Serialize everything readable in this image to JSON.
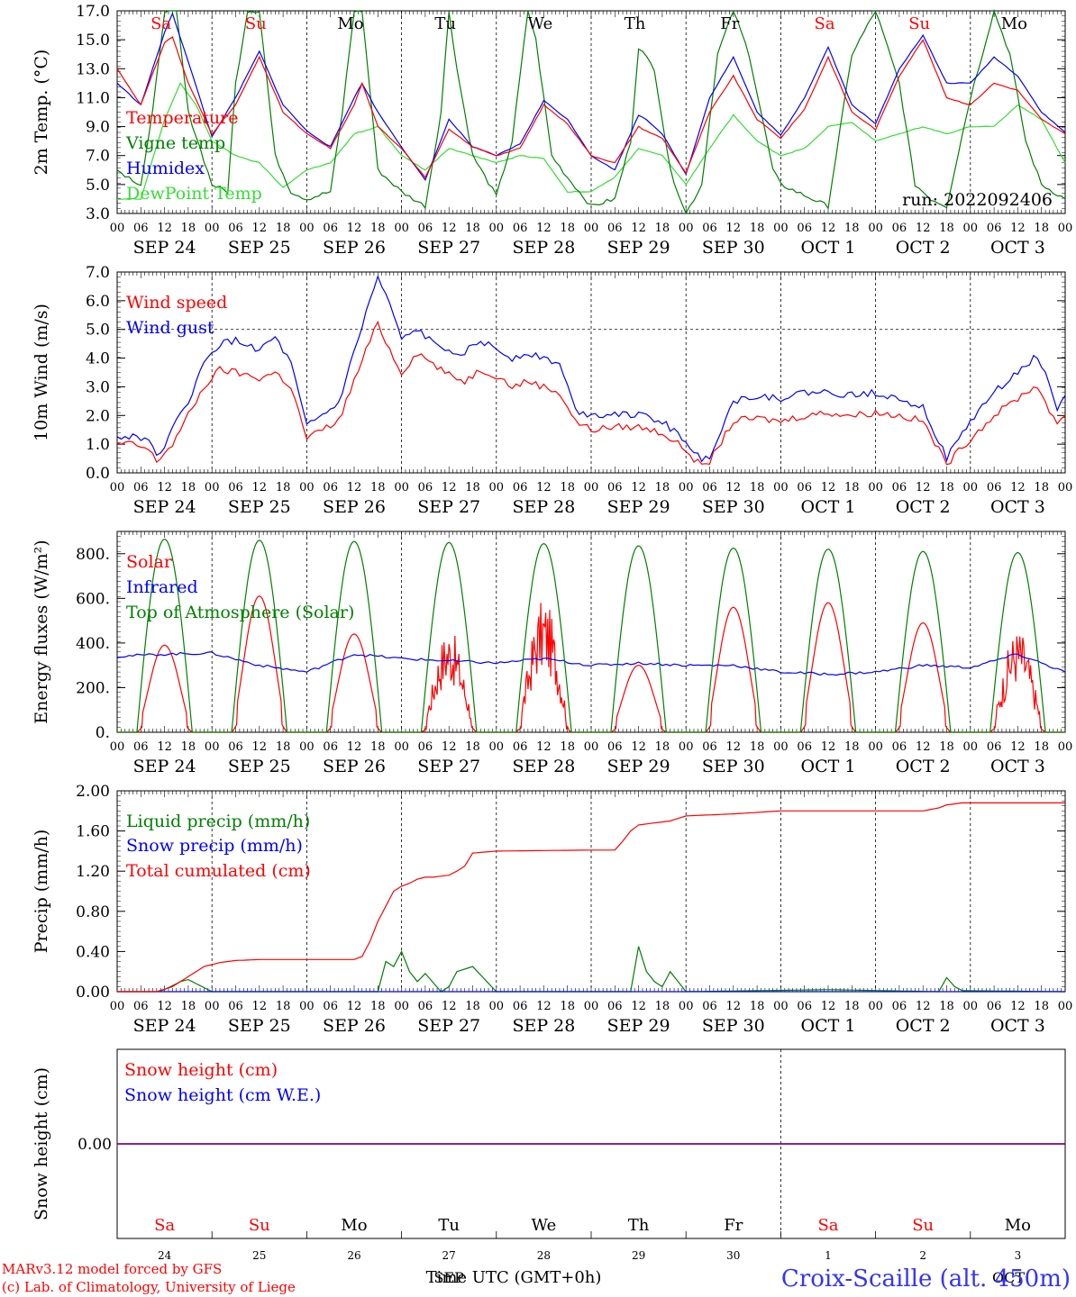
{
  "meta": {
    "run_label": "run: 2022092406",
    "credit_line1": "MARv3.12 model forced by GFS",
    "credit_line2": "(c) Lab. of Climatology, University of Liege",
    "station": "Croix-Scaille (alt. 450m)",
    "time_axis_title": "Time UTC (GMT+0h)",
    "bottom_month_sep": "SEP",
    "bottom_month_oct": "OCT"
  },
  "days": [
    {
      "short": "Sa",
      "date": "SEP 24",
      "num": "24",
      "weekend": true
    },
    {
      "short": "Su",
      "date": "SEP 25",
      "num": "25",
      "weekend": true
    },
    {
      "short": "Mo",
      "date": "SEP 26",
      "num": "26",
      "weekend": false
    },
    {
      "short": "Tu",
      "date": "SEP 27",
      "num": "27",
      "weekend": false
    },
    {
      "short": "We",
      "date": "SEP 28",
      "num": "28",
      "weekend": false
    },
    {
      "short": "Th",
      "date": "SEP 29",
      "num": "29",
      "weekend": false
    },
    {
      "short": "Fr",
      "date": "SEP 30",
      "num": "30",
      "weekend": false
    },
    {
      "short": "Sa",
      "date": "OCT  1",
      "num": "1",
      "weekend": true
    },
    {
      "short": "Su",
      "date": "OCT  2",
      "num": "2",
      "weekend": true
    },
    {
      "short": "Mo",
      "date": "OCT  3",
      "num": "3",
      "weekend": false
    }
  ],
  "hour_ticks": [
    "00",
    "06",
    "12",
    "18"
  ],
  "colors": {
    "red": "#ff0000",
    "green": "#008000",
    "blue": "#0000ff",
    "lightgreen": "#33dd33",
    "purple": "#800080",
    "station": "#3333ff"
  },
  "chart_data": [
    {
      "type": "line",
      "ylabel": "2m Temp. (°C)",
      "ylim": [
        3.0,
        17.0
      ],
      "yticks": [
        "3.0",
        "5.0",
        "7.0",
        "9.0",
        "11.0",
        "13.0",
        "15.0",
        "17.0"
      ],
      "x": "hours since SEP 24 00 UTC (0-240)",
      "series": [
        {
          "name": "Temperature",
          "color": "#ff0000",
          "x": [
            0,
            6,
            12,
            14,
            18,
            24,
            30,
            36,
            42,
            48,
            54,
            60,
            62,
            66,
            72,
            78,
            84,
            90,
            96,
            102,
            108,
            114,
            120,
            126,
            132,
            134,
            138,
            144,
            150,
            156,
            162,
            168,
            174,
            180,
            186,
            192,
            198,
            204,
            210,
            216,
            222,
            228,
            234,
            240
          ],
          "values": [
            13.0,
            10.5,
            14.8,
            15.2,
            12.0,
            8.5,
            10.5,
            13.8,
            10.0,
            8.5,
            7.5,
            10.5,
            12.0,
            9.0,
            7.5,
            5.5,
            8.8,
            7.6,
            7.0,
            7.5,
            10.5,
            9.2,
            7.0,
            6.5,
            9.0,
            8.7,
            8.2,
            5.8,
            10.0,
            12.5,
            9.5,
            8.2,
            10.2,
            13.8,
            10.0,
            8.8,
            12.5,
            15.0,
            11.0,
            10.5,
            12.0,
            11.5,
            9.5,
            8.5
          ]
        },
        {
          "name": "Vigne temp",
          "color": "#008000",
          "x": [
            0,
            6,
            9,
            12,
            15,
            18,
            24,
            28,
            30,
            33,
            36,
            40,
            44,
            48,
            54,
            57,
            60,
            62,
            66,
            72,
            78,
            82,
            84,
            86,
            90,
            96,
            100,
            104,
            106,
            108,
            110,
            114,
            120,
            126,
            130,
            132,
            136,
            140,
            144,
            148,
            152,
            156,
            160,
            166,
            168,
            172,
            176,
            180,
            186,
            192,
            198,
            202,
            206,
            210,
            216,
            222,
            226,
            230,
            234,
            240
          ],
          "values": [
            6.0,
            5.0,
            10.0,
            17.0,
            17.0,
            10.0,
            5.0,
            4.5,
            12.0,
            17.0,
            17.0,
            7.0,
            4.5,
            4.0,
            4.5,
            10.0,
            17.0,
            17.0,
            6.0,
            4.5,
            3.5,
            10.0,
            17.0,
            13.0,
            7.0,
            4.2,
            8.0,
            17.0,
            15.0,
            11.0,
            7.0,
            5.5,
            3.5,
            4.0,
            8.0,
            14.5,
            13.0,
            6.0,
            3.0,
            5.0,
            14.0,
            17.0,
            14.0,
            6.0,
            5.0,
            4.5,
            4.0,
            3.5,
            14.0,
            17.0,
            12.0,
            5.0,
            4.0,
            3.5,
            11.0,
            17.0,
            14.0,
            8.0,
            5.0,
            4.0
          ]
        },
        {
          "name": "Humidex",
          "color": "#0000ff",
          "x": [
            0,
            6,
            12,
            14,
            18,
            24,
            30,
            36,
            42,
            48,
            54,
            60,
            62,
            66,
            72,
            78,
            84,
            90,
            96,
            102,
            108,
            114,
            120,
            126,
            132,
            134,
            138,
            144,
            150,
            156,
            162,
            168,
            174,
            180,
            186,
            192,
            198,
            204,
            210,
            216,
            222,
            228,
            234,
            240
          ],
          "values": [
            12.0,
            10.5,
            15.5,
            16.8,
            13.5,
            8.3,
            11.0,
            14.2,
            10.5,
            8.7,
            7.6,
            11.0,
            12.0,
            10.0,
            7.6,
            5.3,
            9.5,
            7.6,
            7.0,
            7.8,
            10.8,
            9.5,
            7.0,
            6.0,
            9.8,
            9.5,
            8.5,
            5.7,
            11.0,
            13.8,
            10.0,
            8.4,
            11.0,
            14.5,
            10.5,
            9.2,
            13.0,
            15.3,
            12.0,
            12.0,
            13.8,
            12.5,
            10.0,
            8.6
          ]
        },
        {
          "name": "DewPoint Temp",
          "color": "#33dd33",
          "x": [
            0,
            6,
            12,
            16,
            20,
            24,
            30,
            36,
            42,
            48,
            54,
            60,
            66,
            72,
            78,
            84,
            90,
            96,
            102,
            108,
            114,
            120,
            126,
            132,
            138,
            144,
            150,
            156,
            162,
            168,
            174,
            180,
            186,
            192,
            198,
            204,
            210,
            216,
            222,
            228,
            234,
            240
          ],
          "values": [
            4.0,
            4.0,
            9.5,
            12.0,
            10.5,
            8.0,
            7.0,
            6.5,
            4.8,
            6.0,
            6.5,
            8.5,
            9.0,
            7.0,
            6.0,
            7.5,
            7.0,
            6.5,
            7.0,
            6.8,
            4.5,
            4.5,
            5.5,
            7.5,
            7.0,
            5.0,
            7.5,
            9.8,
            8.0,
            7.0,
            7.5,
            9.0,
            9.3,
            8.0,
            8.5,
            9.0,
            8.5,
            9.0,
            9.0,
            10.5,
            9.5,
            6.5
          ]
        }
      ]
    },
    {
      "type": "line",
      "ylabel": "10m Wind (m/s)",
      "ylim": [
        0.0,
        7.0
      ],
      "yticks": [
        "0.0",
        "1.0",
        "2.0",
        "3.0",
        "4.0",
        "5.0",
        "6.0",
        "7.0"
      ],
      "dashed_y": 5.0,
      "series": [
        {
          "name": "Wind speed",
          "color": "#ff0000",
          "x": [
            0,
            4,
            8,
            10,
            14,
            18,
            22,
            26,
            30,
            36,
            40,
            44,
            48,
            52,
            56,
            60,
            64,
            66,
            70,
            72,
            76,
            80,
            84,
            88,
            92,
            96,
            100,
            104,
            108,
            112,
            116,
            120,
            126,
            132,
            138,
            144,
            148,
            150,
            156,
            162,
            168,
            174,
            180,
            186,
            192,
            198,
            204,
            210,
            216,
            222,
            228,
            232,
            234,
            238,
            240
          ],
          "values": [
            1.0,
            1.0,
            0.8,
            0.4,
            1.0,
            2.0,
            3.0,
            3.6,
            3.5,
            3.3,
            3.5,
            3.0,
            1.2,
            1.5,
            1.8,
            3.2,
            4.6,
            5.2,
            4.0,
            3.5,
            4.2,
            3.8,
            3.4,
            3.2,
            3.6,
            3.4,
            3.0,
            3.2,
            3.0,
            2.8,
            1.8,
            1.5,
            1.6,
            1.6,
            1.4,
            0.8,
            0.2,
            0.4,
            1.8,
            1.9,
            1.8,
            2.0,
            2.1,
            2.0,
            2.1,
            2.0,
            1.8,
            0.3,
            1.2,
            2.0,
            2.6,
            3.0,
            2.8,
            1.6,
            2.0
          ]
        },
        {
          "name": "Wind gust",
          "color": "#0000ff",
          "x": [
            0,
            4,
            8,
            10,
            14,
            18,
            22,
            26,
            30,
            36,
            40,
            44,
            48,
            52,
            56,
            60,
            64,
            66,
            70,
            72,
            76,
            80,
            84,
            88,
            92,
            96,
            100,
            104,
            108,
            112,
            116,
            120,
            126,
            132,
            138,
            144,
            148,
            150,
            156,
            162,
            168,
            174,
            180,
            186,
            192,
            198,
            204,
            210,
            216,
            222,
            228,
            232,
            234,
            238,
            240
          ],
          "values": [
            1.2,
            1.3,
            1.2,
            0.5,
            1.5,
            2.5,
            3.8,
            4.5,
            4.6,
            4.3,
            4.7,
            3.8,
            1.6,
            2.0,
            2.4,
            4.2,
            6.0,
            6.8,
            5.5,
            4.6,
            5.0,
            4.5,
            4.3,
            4.2,
            4.6,
            4.3,
            4.0,
            4.2,
            4.0,
            3.8,
            2.2,
            2.0,
            2.1,
            2.0,
            1.8,
            1.1,
            0.4,
            0.6,
            2.5,
            2.7,
            2.6,
            2.8,
            2.8,
            2.7,
            2.8,
            2.6,
            2.3,
            0.5,
            1.8,
            2.8,
            3.5,
            4.0,
            3.8,
            2.2,
            2.7
          ]
        }
      ]
    },
    {
      "type": "line",
      "ylabel": "Energy fluxes (W/m²)",
      "ylim": [
        0,
        900
      ],
      "yticks": [
        "0.",
        "200.",
        "400.",
        "600.",
        "800."
      ],
      "series": [
        {
          "name": "Solar",
          "color": "#ff0000",
          "peaks": [
            390,
            610,
            440,
            470,
            600,
            300,
            560,
            580,
            490,
            470
          ]
        },
        {
          "name": "Infrared",
          "color": "#0000ff",
          "x": [
            0,
            12,
            24,
            36,
            48,
            60,
            72,
            84,
            96,
            108,
            120,
            132,
            144,
            156,
            168,
            180,
            192,
            204,
            216,
            228,
            240
          ],
          "values": [
            340,
            350,
            355,
            300,
            270,
            350,
            330,
            320,
            310,
            330,
            300,
            310,
            300,
            300,
            270,
            260,
            270,
            300,
            290,
            350,
            270
          ]
        },
        {
          "name": "Top of Atmosphere (Solar)",
          "color": "#008000",
          "peaks": [
            865,
            860,
            855,
            850,
            845,
            835,
            825,
            820,
            810,
            805
          ]
        }
      ]
    },
    {
      "type": "line",
      "ylabel": "Precip (mm/h)",
      "ylim": [
        0.0,
        2.0
      ],
      "yticks": [
        "0.00",
        "0.40",
        "0.80",
        "1.20",
        "1.60",
        "2.00"
      ],
      "series": [
        {
          "name": "Liquid precip (mm/h)",
          "color": "#008000",
          "x": [
            0,
            10,
            12,
            14,
            16,
            18,
            20,
            24,
            66,
            68,
            70,
            72,
            74,
            76,
            78,
            82,
            84,
            86,
            90,
            96,
            126,
            130,
            132,
            134,
            136,
            138,
            140,
            144,
            180,
            208,
            210,
            212,
            214,
            240
          ],
          "values": [
            0,
            0,
            0.02,
            0.06,
            0.1,
            0.12,
            0.08,
            0,
            0,
            0.3,
            0.25,
            0.4,
            0.2,
            0.1,
            0.18,
            0,
            0.05,
            0.2,
            0.25,
            0,
            0,
            0,
            0.45,
            0.2,
            0.1,
            0.05,
            0.2,
            0,
            0.02,
            0,
            0.14,
            0.05,
            0.01,
            0
          ]
        },
        {
          "name": "Snow precip (mm/h)",
          "color": "#0000ff",
          "x": [
            0,
            240
          ],
          "values": [
            0,
            0
          ]
        },
        {
          "name": "Total cumulated (cm)",
          "color": "#ff0000",
          "x": [
            0,
            10,
            14,
            18,
            22,
            26,
            30,
            36,
            48,
            60,
            62,
            64,
            66,
            68,
            70,
            72,
            74,
            76,
            78,
            80,
            84,
            86,
            88,
            90,
            96,
            120,
            126,
            128,
            130,
            132,
            136,
            140,
            144,
            150,
            156,
            168,
            180,
            204,
            208,
            210,
            214,
            240
          ],
          "values": [
            0,
            0,
            0.05,
            0.15,
            0.25,
            0.29,
            0.31,
            0.32,
            0.32,
            0.32,
            0.35,
            0.5,
            0.7,
            0.85,
            1.0,
            1.05,
            1.08,
            1.12,
            1.14,
            1.14,
            1.16,
            1.2,
            1.25,
            1.38,
            1.4,
            1.41,
            1.41,
            1.5,
            1.6,
            1.66,
            1.68,
            1.7,
            1.75,
            1.76,
            1.77,
            1.8,
            1.8,
            1.8,
            1.83,
            1.86,
            1.88,
            1.88
          ]
        }
      ]
    },
    {
      "type": "line",
      "ylabel": "Snow height (cm)",
      "yticks": [
        "0.00"
      ],
      "series": [
        {
          "name": "Snow height (cm)",
          "color": "#ff0000",
          "x": [
            0,
            240
          ],
          "values": [
            0,
            0
          ]
        },
        {
          "name": "Snow height (cm W.E.)",
          "color": "#0000ff",
          "x": [
            0,
            240
          ],
          "values": [
            0,
            0
          ]
        }
      ]
    }
  ]
}
